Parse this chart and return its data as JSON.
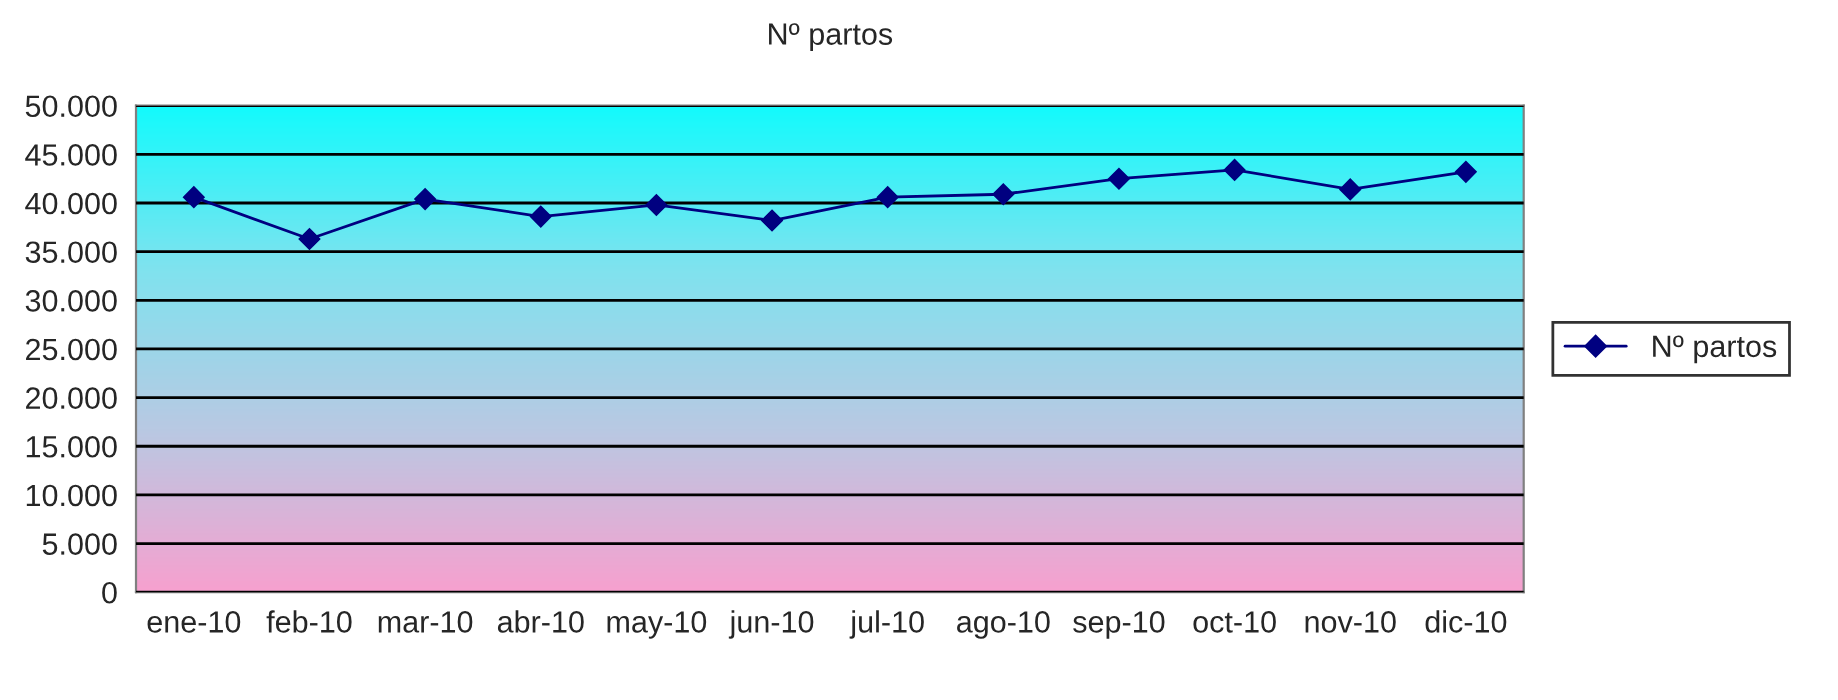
{
  "chart_data": {
    "type": "line",
    "title": "Nº partos",
    "categories": [
      "ene-10",
      "feb-10",
      "mar-10",
      "abr-10",
      "may-10",
      "jun-10",
      "jul-10",
      "ago-10",
      "sep-10",
      "oct-10",
      "nov-10",
      "dic-10"
    ],
    "series": [
      {
        "name": "Nº partos",
        "color": "#000080",
        "values": [
          40600,
          36300,
          40400,
          38600,
          39800,
          38200,
          40600,
          40900,
          42500,
          43400,
          41400,
          43200
        ]
      }
    ],
    "ylim": [
      0,
      50000
    ],
    "yticks": [
      0,
      {
        "value": 5000,
        "label": "5.000"
      },
      {
        "value": 10000,
        "label": "10.000"
      },
      {
        "value": 15000,
        "label": "15.000"
      },
      {
        "value": 20000,
        "label": "20.000"
      },
      {
        "value": 25000,
        "label": "25.000"
      },
      {
        "value": 30000,
        "label": "30.000"
      },
      {
        "value": 35000,
        "label": "35.000"
      },
      {
        "value": 40000,
        "label": "40.000"
      },
      {
        "value": 45000,
        "label": "45.000"
      },
      {
        "value": 50000,
        "label": "50.000"
      }
    ],
    "grid": "y",
    "legend": "right",
    "marker": "diamond",
    "line_style": "solid"
  }
}
